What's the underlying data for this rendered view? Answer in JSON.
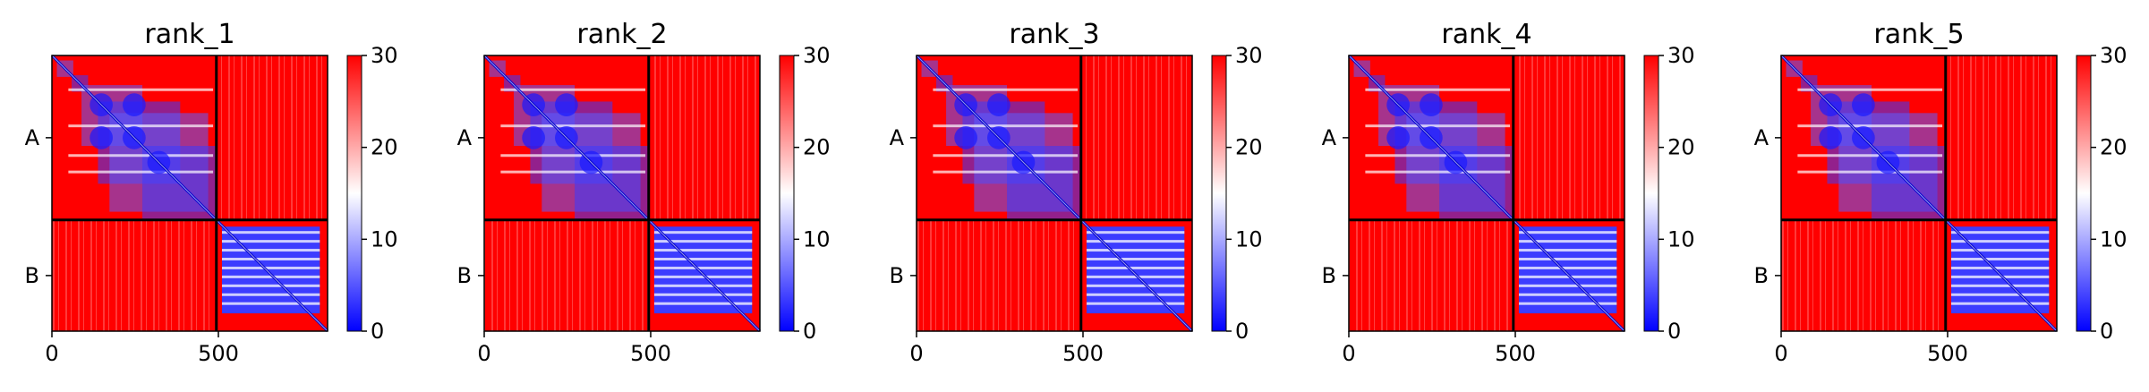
{
  "chart_data": [
    {
      "type": "heatmap",
      "title": "rank_1",
      "xticks": [
        0,
        500
      ],
      "xlim": [
        0,
        828
      ],
      "chain_boundary": 494,
      "yticklabels": [
        "A",
        "B"
      ],
      "colorbar": {
        "ticks": [
          0,
          10,
          20,
          30
        ],
        "range": [
          0,
          30
        ],
        "colormap": "bwr",
        "low_color": "#0000ff",
        "mid_color": "#ffffff",
        "high_color": "#ff0000"
      }
    },
    {
      "type": "heatmap",
      "title": "rank_2",
      "xticks": [
        0,
        500
      ],
      "xlim": [
        0,
        828
      ],
      "chain_boundary": 494,
      "yticklabels": [
        "A",
        "B"
      ],
      "colorbar": {
        "ticks": [
          0,
          10,
          20,
          30
        ],
        "range": [
          0,
          30
        ],
        "colormap": "bwr",
        "low_color": "#0000ff",
        "mid_color": "#ffffff",
        "high_color": "#ff0000"
      }
    },
    {
      "type": "heatmap",
      "title": "rank_3",
      "xticks": [
        0,
        500
      ],
      "xlim": [
        0,
        828
      ],
      "chain_boundary": 494,
      "yticklabels": [
        "A",
        "B"
      ],
      "colorbar": {
        "ticks": [
          0,
          10,
          20,
          30
        ],
        "range": [
          0,
          30
        ],
        "colormap": "bwr",
        "low_color": "#0000ff",
        "mid_color": "#ffffff",
        "high_color": "#ff0000"
      }
    },
    {
      "type": "heatmap",
      "title": "rank_4",
      "xticks": [
        0,
        500
      ],
      "xlim": [
        0,
        828
      ],
      "chain_boundary": 494,
      "yticklabels": [
        "A",
        "B"
      ],
      "colorbar": {
        "ticks": [
          0,
          10,
          20,
          30
        ],
        "range": [
          0,
          30
        ],
        "colormap": "bwr",
        "low_color": "#0000ff",
        "mid_color": "#ffffff",
        "high_color": "#ff0000"
      }
    },
    {
      "type": "heatmap",
      "title": "rank_5",
      "xticks": [
        0,
        500
      ],
      "xlim": [
        0,
        828
      ],
      "chain_boundary": 494,
      "yticklabels": [
        "A",
        "B"
      ],
      "colorbar": {
        "ticks": [
          0,
          10,
          20,
          30
        ],
        "range": [
          0,
          30
        ],
        "colormap": "bwr",
        "low_color": "#0000ff",
        "mid_color": "#ffffff",
        "high_color": "#ff0000"
      }
    }
  ]
}
